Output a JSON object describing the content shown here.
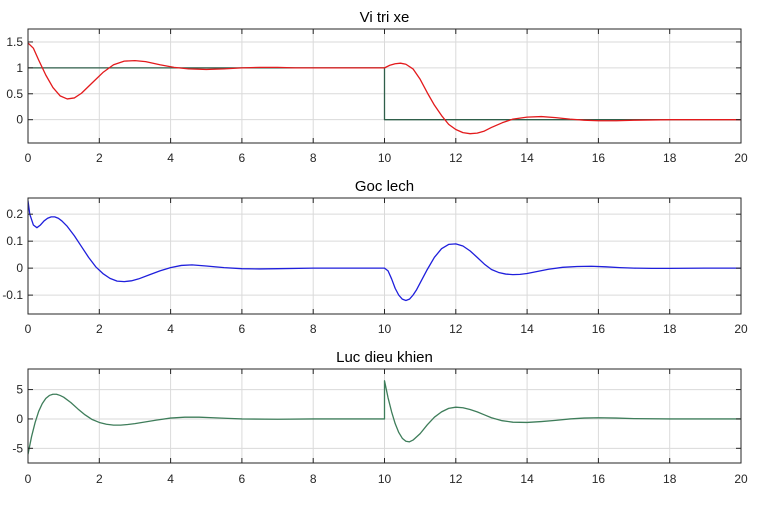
{
  "figure": {
    "background": "#ffffff",
    "axes_color": "#262626",
    "grid_color": "#dadada"
  },
  "chart_data": [
    {
      "type": "line",
      "title": "Vi tri xe",
      "xlabel": "",
      "ylabel": "",
      "xlim": [
        0,
        20
      ],
      "ylim": [
        -0.45,
        1.75
      ],
      "xticks": [
        0,
        2,
        4,
        6,
        8,
        10,
        12,
        14,
        16,
        18,
        20
      ],
      "xtick_labels": [
        "0",
        "2",
        "4",
        "6",
        "8",
        "10",
        "12",
        "14",
        "16",
        "18",
        "20"
      ],
      "yticks": [
        1.5,
        1,
        0.5,
        0
      ],
      "ytick_labels": [
        "1.5",
        "1",
        "0.5",
        "0"
      ],
      "grid": true,
      "series": [
        {
          "color": "#2f5f4a",
          "step": true,
          "x": [
            0,
            10,
            10,
            20
          ],
          "y": [
            1,
            1,
            0,
            0
          ]
        },
        {
          "color": "#e31a1c",
          "x": [
            0,
            0.15,
            0.3,
            0.5,
            0.7,
            0.9,
            1.1,
            1.3,
            1.5,
            1.8,
            2.1,
            2.4,
            2.7,
            3.0,
            3.3,
            3.7,
            4.1,
            4.5,
            5.0,
            5.5,
            6.0,
            6.5,
            7.0,
            7.5,
            8.0,
            9.0,
            10.0,
            10.15,
            10.3,
            10.45,
            10.6,
            10.8,
            11.0,
            11.2,
            11.4,
            11.6,
            11.8,
            12.0,
            12.2,
            12.4,
            12.6,
            12.8,
            13.0,
            13.3,
            13.6,
            14.0,
            14.4,
            14.8,
            15.2,
            15.6,
            16.0,
            16.5,
            17.0,
            18.0,
            19.0,
            20.0
          ],
          "y": [
            1.48,
            1.38,
            1.15,
            0.86,
            0.62,
            0.46,
            0.4,
            0.42,
            0.51,
            0.71,
            0.91,
            1.06,
            1.13,
            1.14,
            1.12,
            1.06,
            1.01,
            0.98,
            0.97,
            0.98,
            1.0,
            1.01,
            1.01,
            1.0,
            1.0,
            1.0,
            1.0,
            1.05,
            1.08,
            1.09,
            1.07,
            0.98,
            0.78,
            0.52,
            0.28,
            0.08,
            -0.09,
            -0.19,
            -0.25,
            -0.27,
            -0.26,
            -0.22,
            -0.15,
            -0.06,
            0.01,
            0.05,
            0.06,
            0.04,
            0.01,
            -0.01,
            -0.02,
            -0.02,
            -0.01,
            0.0,
            0.0,
            0.0
          ]
        }
      ]
    },
    {
      "type": "line",
      "title": "Goc lech",
      "xlabel": "",
      "ylabel": "",
      "xlim": [
        0,
        20
      ],
      "ylim": [
        -0.17,
        0.26
      ],
      "xticks": [
        0,
        2,
        4,
        6,
        8,
        10,
        12,
        14,
        16,
        18,
        20
      ],
      "xtick_labels": [
        "0",
        "2",
        "4",
        "6",
        "8",
        "10",
        "12",
        "14",
        "16",
        "18",
        "20"
      ],
      "yticks": [
        0.2,
        0.1,
        0,
        -0.1
      ],
      "ytick_labels": [
        "0.2",
        "0.1",
        "0",
        "-0.1"
      ],
      "grid": true,
      "series": [
        {
          "color": "#1f1fdc",
          "x": [
            0,
            0.05,
            0.15,
            0.25,
            0.35,
            0.45,
            0.55,
            0.65,
            0.75,
            0.85,
            0.95,
            1.1,
            1.3,
            1.5,
            1.7,
            1.9,
            2.1,
            2.3,
            2.5,
            2.7,
            2.9,
            3.1,
            3.4,
            3.7,
            4.0,
            4.3,
            4.6,
            5.0,
            5.5,
            6.0,
            6.5,
            7.0,
            8.0,
            9.0,
            10.0,
            10.1,
            10.2,
            10.3,
            10.4,
            10.5,
            10.6,
            10.7,
            10.8,
            10.9,
            11.0,
            11.2,
            11.4,
            11.6,
            11.8,
            12.0,
            12.2,
            12.4,
            12.6,
            12.8,
            13.0,
            13.2,
            13.4,
            13.6,
            13.8,
            14.0,
            14.3,
            14.6,
            15.0,
            15.4,
            15.8,
            16.2,
            16.6,
            17.0,
            17.5,
            18.0,
            19.0,
            20.0
          ],
          "y": [
            0.25,
            0.2,
            0.16,
            0.15,
            0.16,
            0.175,
            0.185,
            0.19,
            0.19,
            0.185,
            0.175,
            0.155,
            0.12,
            0.08,
            0.04,
            0.005,
            -0.02,
            -0.038,
            -0.048,
            -0.05,
            -0.047,
            -0.04,
            -0.025,
            -0.01,
            0.002,
            0.01,
            0.012,
            0.008,
            0.002,
            -0.002,
            -0.003,
            -0.002,
            0.0,
            0.0,
            0.0,
            -0.01,
            -0.04,
            -0.075,
            -0.1,
            -0.115,
            -0.12,
            -0.115,
            -0.1,
            -0.08,
            -0.055,
            -0.005,
            0.04,
            0.072,
            0.088,
            0.09,
            0.082,
            0.064,
            0.04,
            0.015,
            -0.005,
            -0.016,
            -0.022,
            -0.024,
            -0.023,
            -0.02,
            -0.012,
            -0.004,
            0.003,
            0.006,
            0.007,
            0.005,
            0.002,
            0.0,
            -0.001,
            -0.001,
            0.0,
            0.0
          ]
        }
      ]
    },
    {
      "type": "line",
      "title": "Luc dieu khien",
      "xlabel": "",
      "ylabel": "",
      "xlim": [
        0,
        20
      ],
      "ylim": [
        -7.5,
        8.5
      ],
      "xticks": [
        0,
        2,
        4,
        6,
        8,
        10,
        12,
        14,
        16,
        18,
        20
      ],
      "xtick_labels": [
        "0",
        "2",
        "4",
        "6",
        "8",
        "10",
        "12",
        "14",
        "16",
        "18",
        "20"
      ],
      "yticks": [
        5,
        0,
        -5
      ],
      "ytick_labels": [
        "5",
        "0",
        "-5"
      ],
      "grid": true,
      "series": [
        {
          "color": "#3e7d5a",
          "x": [
            0,
            0.1,
            0.2,
            0.3,
            0.4,
            0.5,
            0.6,
            0.7,
            0.8,
            0.9,
            1.0,
            1.2,
            1.4,
            1.6,
            1.8,
            2.0,
            2.2,
            2.4,
            2.6,
            2.8,
            3.0,
            3.3,
            3.6,
            4.0,
            4.4,
            4.8,
            5.2,
            5.6,
            6.0,
            7.0,
            8.0,
            9.0,
            10.0,
            10.0,
            10.1,
            10.2,
            10.3,
            10.4,
            10.5,
            10.6,
            10.7,
            10.8,
            11.0,
            11.2,
            11.4,
            11.6,
            11.8,
            12.0,
            12.2,
            12.4,
            12.6,
            12.8,
            13.0,
            13.3,
            13.6,
            14.0,
            14.4,
            14.8,
            15.2,
            15.6,
            16.0,
            16.5,
            17.0,
            18.0,
            19.0,
            20.0
          ],
          "y": [
            -6.0,
            -3.0,
            -0.6,
            1.3,
            2.6,
            3.5,
            4.0,
            4.2,
            4.2,
            4.0,
            3.7,
            2.8,
            1.7,
            0.7,
            -0.1,
            -0.6,
            -0.9,
            -1.05,
            -1.05,
            -0.95,
            -0.8,
            -0.5,
            -0.2,
            0.15,
            0.3,
            0.3,
            0.2,
            0.1,
            0.0,
            -0.05,
            0.0,
            0.0,
            0.0,
            6.5,
            3.6,
            1.2,
            -0.8,
            -2.3,
            -3.3,
            -3.8,
            -3.9,
            -3.6,
            -2.5,
            -1.0,
            0.3,
            1.2,
            1.8,
            2.0,
            1.9,
            1.6,
            1.2,
            0.7,
            0.2,
            -0.3,
            -0.55,
            -0.6,
            -0.45,
            -0.25,
            0.0,
            0.15,
            0.2,
            0.15,
            0.05,
            0.0,
            0.0,
            0.0
          ]
        }
      ]
    }
  ]
}
